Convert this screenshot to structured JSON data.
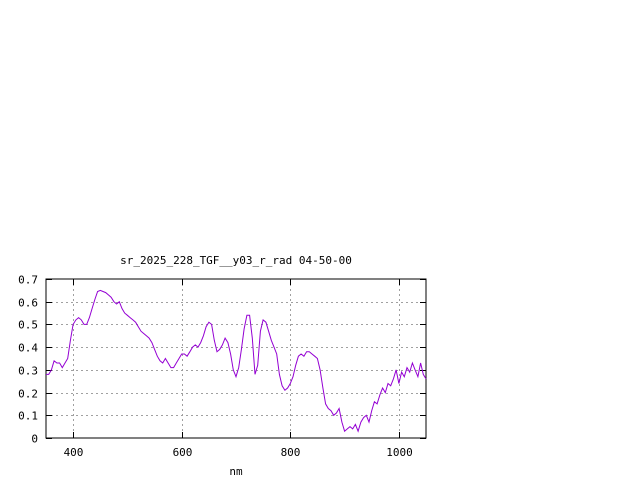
{
  "chart_data": {
    "type": "line",
    "title": "sr_2025_228_TGF__y03_r_rad 04-50-00",
    "xlabel": "nm",
    "ylabel": "",
    "xlim": [
      350,
      1050
    ],
    "ylim": [
      0,
      0.7
    ],
    "x_ticks": [
      400,
      600,
      800,
      1000
    ],
    "y_ticks": [
      0,
      0.1,
      0.2,
      0.3,
      0.4,
      0.5,
      0.6,
      0.7
    ],
    "x_tick_labels": [
      "400",
      "600",
      "800",
      "1000"
    ],
    "y_tick_labels": [
      "0",
      "0.1",
      "0.2",
      "0.3",
      "0.4",
      "0.5",
      "0.6",
      "0.7"
    ],
    "grid": true,
    "line_color": "#9400d3",
    "series": [
      {
        "x": [
          350,
          355,
          360,
          365,
          370,
          375,
          380,
          385,
          390,
          395,
          400,
          405,
          410,
          415,
          420,
          425,
          430,
          435,
          440,
          445,
          450,
          455,
          460,
          465,
          470,
          475,
          480,
          485,
          490,
          495,
          500,
          505,
          510,
          515,
          520,
          525,
          530,
          535,
          540,
          545,
          550,
          555,
          560,
          565,
          570,
          575,
          580,
          585,
          590,
          595,
          600,
          605,
          610,
          615,
          620,
          625,
          630,
          635,
          640,
          645,
          650,
          655,
          660,
          665,
          670,
          675,
          680,
          685,
          690,
          695,
          700,
          705,
          710,
          715,
          720,
          725,
          730,
          735,
          740,
          745,
          750,
          755,
          760,
          765,
          770,
          775,
          780,
          785,
          790,
          795,
          800,
          805,
          810,
          815,
          820,
          825,
          830,
          835,
          840,
          845,
          850,
          855,
          860,
          865,
          870,
          875,
          880,
          885,
          890,
          895,
          900,
          905,
          910,
          915,
          920,
          925,
          930,
          935,
          940,
          945,
          950,
          955,
          960,
          965,
          970,
          975,
          980,
          985,
          990,
          995,
          1000,
          1005,
          1010,
          1015,
          1020,
          1025,
          1030,
          1035,
          1040,
          1045,
          1050
        ],
        "y": [
          0.28,
          0.28,
          0.3,
          0.34,
          0.33,
          0.33,
          0.31,
          0.33,
          0.35,
          0.43,
          0.5,
          0.52,
          0.53,
          0.52,
          0.5,
          0.5,
          0.53,
          0.57,
          0.61,
          0.645,
          0.65,
          0.645,
          0.64,
          0.63,
          0.62,
          0.6,
          0.59,
          0.6,
          0.57,
          0.55,
          0.54,
          0.53,
          0.52,
          0.51,
          0.49,
          0.47,
          0.46,
          0.45,
          0.44,
          0.42,
          0.39,
          0.36,
          0.34,
          0.33,
          0.35,
          0.33,
          0.31,
          0.31,
          0.33,
          0.35,
          0.37,
          0.37,
          0.36,
          0.38,
          0.4,
          0.41,
          0.4,
          0.42,
          0.45,
          0.49,
          0.51,
          0.5,
          0.43,
          0.38,
          0.39,
          0.41,
          0.44,
          0.42,
          0.37,
          0.3,
          0.27,
          0.31,
          0.39,
          0.48,
          0.54,
          0.54,
          0.44,
          0.28,
          0.32,
          0.47,
          0.52,
          0.51,
          0.47,
          0.43,
          0.4,
          0.37,
          0.28,
          0.23,
          0.21,
          0.22,
          0.24,
          0.27,
          0.32,
          0.36,
          0.37,
          0.36,
          0.38,
          0.38,
          0.37,
          0.36,
          0.35,
          0.3,
          0.22,
          0.15,
          0.13,
          0.12,
          0.1,
          0.11,
          0.13,
          0.07,
          0.03,
          0.04,
          0.05,
          0.04,
          0.06,
          0.03,
          0.07,
          0.09,
          0.1,
          0.07,
          0.12,
          0.16,
          0.15,
          0.19,
          0.22,
          0.2,
          0.24,
          0.23,
          0.26,
          0.3,
          0.24,
          0.29,
          0.27,
          0.31,
          0.29,
          0.33,
          0.3,
          0.27,
          0.33,
          0.28,
          0.26
        ]
      }
    ]
  }
}
